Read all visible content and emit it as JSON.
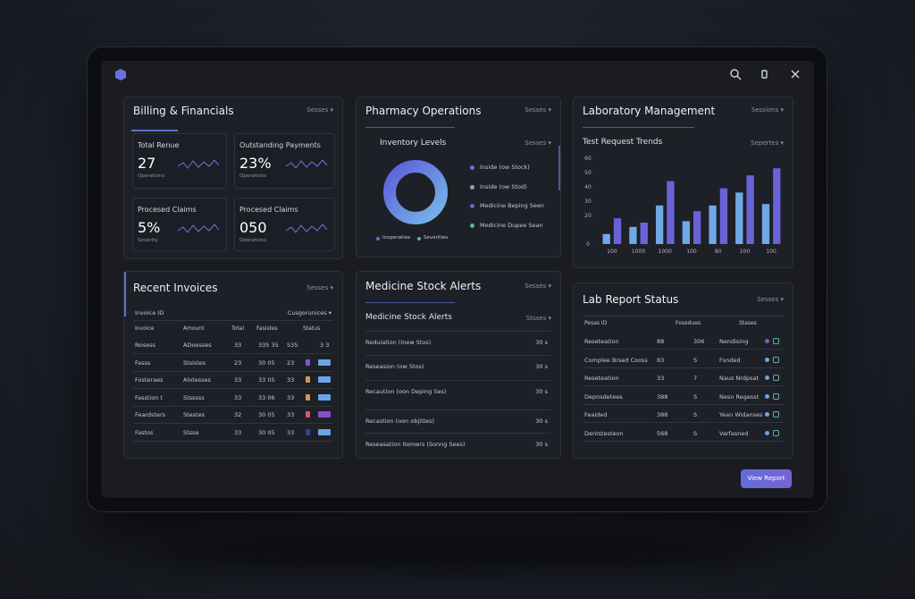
{
  "billing": {
    "title": "Billing & Financials",
    "menu": "Sesses ▾",
    "cards": [
      {
        "label": "Total Renue",
        "value": "27",
        "caption": "Operations"
      },
      {
        "label": "Outstanding Payments",
        "value": "23%",
        "caption": "Operations"
      },
      {
        "label": "Procesed Claims",
        "value": "5%",
        "caption": "Severity"
      },
      {
        "label": "Procesed Claims",
        "value": "050",
        "caption": "Operations"
      }
    ]
  },
  "pharmacy": {
    "title": "Pharmacy Operations",
    "menu": "Sesses ▾",
    "subtitle": "Inventory Levels",
    "submenu": "Sesses ▾",
    "legend": [
      "Inside (ow Stock)",
      "Inside (ow Stod)",
      "Medicine Beping Seen",
      "Medicine Dupee Sean"
    ],
    "bottom_legend": [
      "Inoperatiee",
      "Severities"
    ]
  },
  "lab": {
    "title": "Laboratory Management",
    "menu": "Sessions ▾",
    "subtitle": "Test Request Trends",
    "submenu": "Sepertes ▾",
    "chart": {
      "type": "bar",
      "categories": [
        "100",
        "1000",
        "1000",
        "100",
        "80",
        "100",
        "100"
      ],
      "series": [
        {
          "color": "#6fa8e6",
          "values": [
            7,
            12,
            27,
            16,
            27,
            36,
            28
          ]
        },
        {
          "color": "#6a63d8",
          "values": [
            18,
            15,
            44,
            23,
            39,
            48,
            53
          ]
        }
      ],
      "ylim": [
        0,
        60
      ],
      "yticks": [
        0,
        20,
        30,
        40,
        50,
        60
      ]
    }
  },
  "invoices": {
    "title": "Recent Invoices",
    "menu": "Sesses ▾",
    "filter_label": "Invoice ID",
    "filter": "Cusgorunices ▾",
    "header": [
      "Invoice",
      "Amount",
      "Total",
      "Fasistes",
      "Status"
    ],
    "rows": [
      [
        "Nosess",
        "ADoesses",
        "33",
        "335 35",
        "S35",
        "3 3"
      ],
      [
        "Fasss",
        "Stsistes",
        "23",
        "30 05",
        "23"
      ],
      [
        "Fosteraes",
        "Alotesses",
        "33",
        "33 05",
        "33"
      ],
      [
        "Fasstion t",
        "Stsssss",
        "33",
        "33 06",
        "33"
      ],
      [
        "Feardsters",
        "Stestes",
        "32",
        "30 05",
        "33"
      ],
      [
        "Fastos",
        "Stsse",
        "33",
        "30 05",
        "33"
      ]
    ]
  },
  "medicine": {
    "title": "Medicine Stock Alerts",
    "menu": "Sesses ▾",
    "subtitle": "Medicine Stock Alerts",
    "submenu": "Stsses ▾",
    "rows": [
      [
        "Reduiation (Inew Stos)",
        "30 s"
      ],
      [
        "Reseasion (ow Stos)",
        "30 s"
      ],
      [
        "Recaution (oon Deping Ses)",
        "30 s"
      ],
      [
        "Recastion (oon objittes)",
        "30 s"
      ],
      [
        "Reseasation Itemers (Sonng Sees)",
        "30 s"
      ]
    ]
  },
  "lab_reports": {
    "title": "Lab Report Status",
    "menu": "Sesses ▾",
    "header": [
      "Pesas ID",
      "Fosedues",
      "Stases"
    ],
    "rows": [
      [
        "Reseteation",
        "88",
        "306",
        "Nendising"
      ],
      [
        "Complee Brsed Cooss",
        "83",
        "S",
        "Fsnded"
      ],
      [
        "Reseteation",
        "33",
        "7",
        "Naus Nrdpsat"
      ],
      [
        "Depnsdetees",
        "388",
        "S",
        "Nesn Regesst"
      ],
      [
        "Feaided",
        "388",
        "S",
        "Yean Widanses"
      ],
      [
        "Dentstesteon",
        "568",
        "S",
        "Varfasned"
      ]
    ]
  },
  "button": "View Report"
}
